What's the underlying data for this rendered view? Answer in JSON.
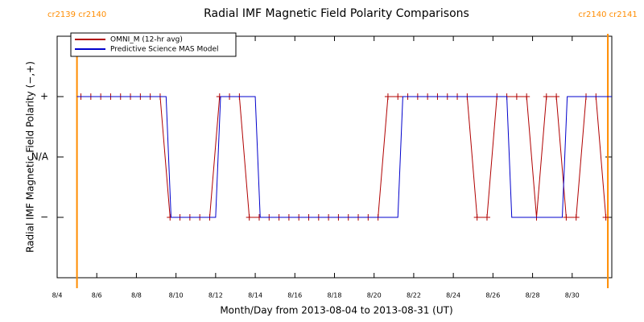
{
  "chart_data": {
    "type": "line",
    "title": "Radial IMF Magnetic Field Polarity Comparisons",
    "xlabel": "Month/Day from 2013-08-04 to 2013-08-31 (UT)",
    "ylabel": "Radial IMF Magnetic Field Polarity (−,+)",
    "xlim": [
      4,
      32
    ],
    "ylim": [
      -2,
      2
    ],
    "xticks": [
      {
        "value": 4,
        "label": "8/4"
      },
      {
        "value": 6,
        "label": "8/6"
      },
      {
        "value": 8,
        "label": "8/8"
      },
      {
        "value": 10,
        "label": "8/10"
      },
      {
        "value": 12,
        "label": "8/12"
      },
      {
        "value": 14,
        "label": "8/14"
      },
      {
        "value": 16,
        "label": "8/16"
      },
      {
        "value": 18,
        "label": "8/18"
      },
      {
        "value": 20,
        "label": "8/20"
      },
      {
        "value": 22,
        "label": "8/22"
      },
      {
        "value": 24,
        "label": "8/24"
      },
      {
        "value": 26,
        "label": "8/26"
      },
      {
        "value": 28,
        "label": "8/28"
      },
      {
        "value": 30,
        "label": "8/30"
      }
    ],
    "yticks": [
      {
        "value": 1,
        "label": "+"
      },
      {
        "value": 0,
        "label": "N/A"
      },
      {
        "value": -1,
        "label": "−"
      }
    ],
    "legend": "upper left",
    "markers": [
      {
        "label": "cr2139 cr2140",
        "x": 5.0,
        "color": "#ff8c00"
      },
      {
        "label": "cr2140 cr2141",
        "x": 31.8,
        "color": "#ff8c00"
      }
    ],
    "series": [
      {
        "name": "OMNI_M (12-hr avg)",
        "color": "#b00000",
        "marker": "+",
        "x": [
          5.2,
          5.7,
          6.2,
          6.7,
          7.2,
          7.7,
          8.2,
          8.7,
          9.2,
          9.7,
          10.2,
          10.7,
          11.2,
          11.7,
          12.2,
          12.7,
          13.2,
          13.7,
          14.2,
          14.7,
          15.2,
          15.7,
          16.2,
          16.7,
          17.2,
          17.7,
          18.2,
          18.7,
          19.2,
          19.7,
          20.2,
          20.7,
          21.2,
          21.7,
          22.2,
          22.7,
          23.2,
          23.7,
          24.2,
          24.7,
          25.2,
          25.7,
          26.2,
          26.7,
          27.2,
          27.7,
          28.2,
          28.7,
          29.2,
          29.7,
          30.2,
          30.7,
          31.2,
          31.7
        ],
        "values": [
          1,
          1,
          1,
          1,
          1,
          1,
          1,
          1,
          1,
          -1,
          -1,
          -1,
          -1,
          -1,
          1,
          1,
          1,
          -1,
          -1,
          -1,
          -1,
          -1,
          -1,
          -1,
          -1,
          -1,
          -1,
          -1,
          -1,
          -1,
          -1,
          1,
          1,
          1,
          1,
          1,
          1,
          1,
          1,
          1,
          -1,
          -1,
          1,
          1,
          1,
          1,
          -1,
          1,
          1,
          -1,
          -1,
          1,
          1,
          -1
        ]
      },
      {
        "name": "Predictive Science MAS Model",
        "color": "#0000cc",
        "x": [
          5.0,
          9.5,
          9.75,
          12.0,
          12.25,
          14.0,
          14.25,
          21.2,
          21.45,
          26.7,
          26.95,
          29.5,
          29.75,
          32.0
        ],
        "values": [
          1,
          1,
          -1,
          -1,
          1,
          1,
          -1,
          -1,
          1,
          1,
          -1,
          -1,
          1,
          1
        ]
      }
    ]
  }
}
